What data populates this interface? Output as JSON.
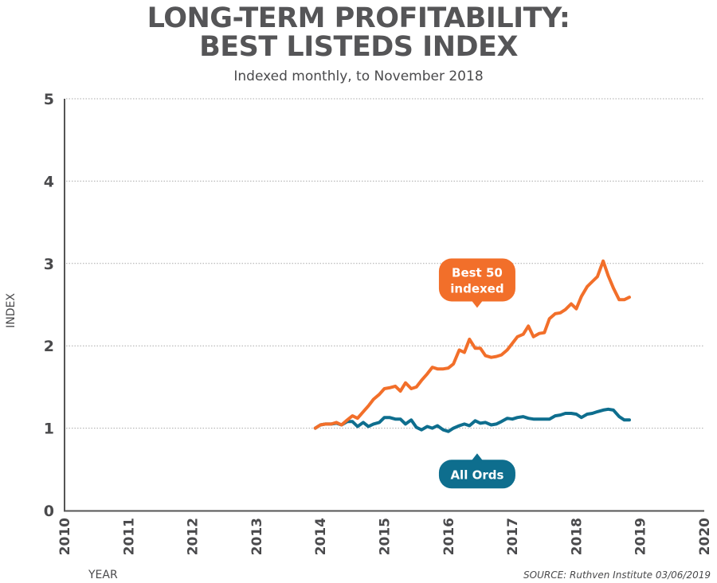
{
  "chart_data": {
    "type": "line",
    "title": "LONG-TERM PROFITABILITY:",
    "title_line2": "BEST LISTEDS INDEX",
    "subtitle": "Indexed monthly, to November 2018",
    "xlabel": "YEAR",
    "ylabel": "INDEX",
    "xlim": [
      2010,
      2020
    ],
    "ylim": [
      0,
      5
    ],
    "x_ticks": [
      "2010",
      "2011",
      "2012",
      "2013",
      "2014",
      "2015",
      "2016",
      "2017",
      "2018",
      "2019",
      "2020"
    ],
    "y_ticks": [
      "0",
      "1",
      "2",
      "3",
      "4",
      "5"
    ],
    "grid": "horizontal-dotted",
    "source": "SOURCE: Ruthven Institute 03/06/2019",
    "x": [
      2013.92,
      2014.0,
      2014.08,
      2014.17,
      2014.25,
      2014.33,
      2014.42,
      2014.5,
      2014.58,
      2014.67,
      2014.75,
      2014.83,
      2014.92,
      2015.0,
      2015.08,
      2015.17,
      2015.25,
      2015.33,
      2015.42,
      2015.5,
      2015.58,
      2015.67,
      2015.75,
      2015.83,
      2015.92,
      2016.0,
      2016.08,
      2016.17,
      2016.25,
      2016.33,
      2016.42,
      2016.5,
      2016.58,
      2016.67,
      2016.75,
      2016.83,
      2016.92,
      2017.0,
      2017.08,
      2017.17,
      2017.25,
      2017.33,
      2017.42,
      2017.5,
      2017.58,
      2017.67,
      2017.75,
      2017.83,
      2017.92,
      2018.0,
      2018.08,
      2018.17,
      2018.25,
      2018.33,
      2018.42,
      2018.5,
      2018.58,
      2018.67,
      2018.75,
      2018.83
    ],
    "series": [
      {
        "name": "Best 50 indexed",
        "color": "#f26f2a",
        "values": [
          1.0,
          1.04,
          1.05,
          1.05,
          1.07,
          1.04,
          1.1,
          1.15,
          1.12,
          1.2,
          1.27,
          1.35,
          1.41,
          1.48,
          1.49,
          1.51,
          1.45,
          1.55,
          1.48,
          1.5,
          1.58,
          1.66,
          1.74,
          1.72,
          1.72,
          1.73,
          1.78,
          1.95,
          1.92,
          2.08,
          1.97,
          1.97,
          1.88,
          1.86,
          1.87,
          1.89,
          1.95,
          2.03,
          2.11,
          2.14,
          2.24,
          2.11,
          2.15,
          2.16,
          2.33,
          2.39,
          2.4,
          2.44,
          2.51,
          2.45,
          2.6,
          2.72,
          2.78,
          2.84,
          3.03,
          2.85,
          2.7,
          2.56,
          2.56,
          2.59
        ]
      },
      {
        "name": "All Ords",
        "color": "#0e6e8e",
        "values": [
          1.0,
          1.04,
          1.05,
          1.05,
          1.06,
          1.04,
          1.08,
          1.08,
          1.02,
          1.07,
          1.02,
          1.05,
          1.07,
          1.13,
          1.13,
          1.11,
          1.11,
          1.05,
          1.1,
          1.01,
          0.98,
          1.02,
          1.0,
          1.03,
          0.98,
          0.96,
          1.0,
          1.03,
          1.05,
          1.03,
          1.09,
          1.06,
          1.07,
          1.04,
          1.05,
          1.08,
          1.12,
          1.11,
          1.13,
          1.14,
          1.12,
          1.11,
          1.11,
          1.11,
          1.11,
          1.15,
          1.16,
          1.18,
          1.18,
          1.17,
          1.13,
          1.17,
          1.18,
          1.2,
          1.22,
          1.23,
          1.22,
          1.14,
          1.1,
          1.1
        ]
      }
    ],
    "annotations": [
      {
        "series": "Best 50 indexed",
        "line1": "Best 50",
        "line2": "indexed",
        "color": "#f26f2a",
        "x": 2016.45,
        "y": 2.8
      },
      {
        "series": "All Ords",
        "line1": "All Ords",
        "color": "#0e6e8e",
        "x": 2016.45,
        "y": 0.5
      }
    ]
  }
}
